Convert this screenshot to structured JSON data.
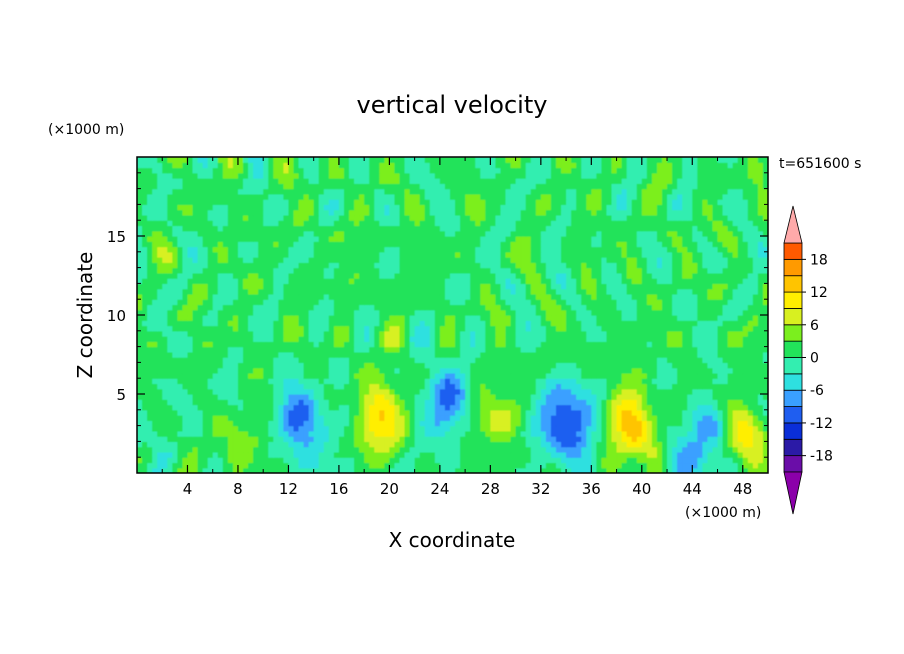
{
  "chart_data": {
    "type": "heatmap",
    "title": "vertical velocity",
    "xlabel": "X coordinate",
    "ylabel": "Z coordinate",
    "x_unit": "(×1000 m)",
    "y_unit": "(×1000 m)",
    "time_label": "t=651600 s",
    "xlim": [
      0,
      50
    ],
    "ylim": [
      0,
      20
    ],
    "x_ticks": [
      4,
      8,
      12,
      16,
      20,
      24,
      28,
      32,
      36,
      40,
      44,
      48
    ],
    "y_ticks": [
      5,
      10,
      15
    ],
    "colorbar": {
      "min": -21,
      "max": 21,
      "ticks": [
        18,
        12,
        6,
        0,
        -6,
        -12,
        -18
      ],
      "levels": [
        -21,
        -18,
        -15,
        -12,
        -9,
        -6,
        -3,
        0,
        3,
        6,
        9,
        12,
        15,
        18,
        21
      ],
      "colors": [
        "#6a0da8",
        "#2b1aa6",
        "#0a2ed8",
        "#1f5ef0",
        "#3aa0ff",
        "#2ee0e0",
        "#33eeb0",
        "#22e35a",
        "#7bef1e",
        "#d8f020",
        "#ffee00",
        "#ffc400",
        "#ff9a00",
        "#ff5a00",
        "#ee2020"
      ],
      "under_color": "#8b00aa",
      "over_color": "#ffaaaa"
    },
    "features": [
      {
        "x": 8.0,
        "z": 1.8,
        "w": 5
      },
      {
        "x": 13.0,
        "z": 3.2,
        "w": -9
      },
      {
        "x": 19.5,
        "z": 3.5,
        "w": 12
      },
      {
        "x": 24.5,
        "z": 4.5,
        "w": -10
      },
      {
        "x": 28.0,
        "z": 3.5,
        "w": 7
      },
      {
        "x": 34.0,
        "z": 3.2,
        "w": -13
      },
      {
        "x": 39.3,
        "z": 3.0,
        "w": 13
      },
      {
        "x": 45.0,
        "z": 1.8,
        "w": -9
      },
      {
        "x": 48.0,
        "z": 2.2,
        "w": 10
      }
    ]
  }
}
